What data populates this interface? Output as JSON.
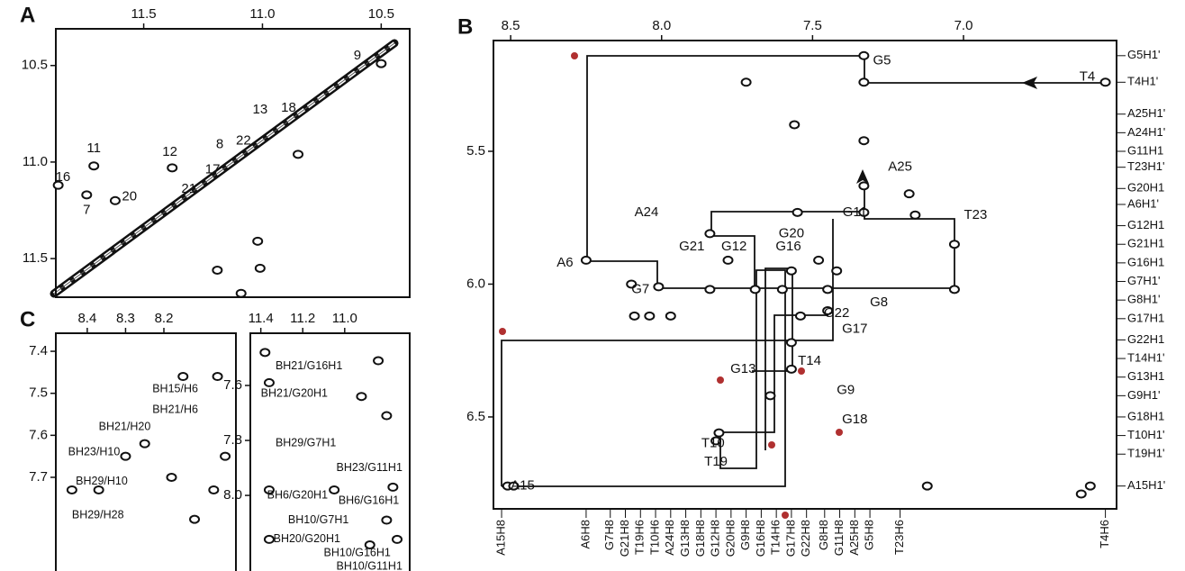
{
  "chart_data": [
    {
      "type": "contour",
      "panel_label": "A",
      "xlim": [
        11.87,
        10.38
      ],
      "ylim": [
        10.31,
        11.7
      ],
      "xticks": [
        11.5,
        {
          "value": 11,
          "label": "11.0"
        },
        10.5
      ],
      "yticks": [
        10.5,
        {
          "value": 11,
          "label": "11.0"
        },
        11.5
      ],
      "peaks": {
        "x": [
          10.5,
          11.86,
          11.71,
          11.74,
          11.62,
          11.38,
          11.19,
          11.01,
          11.09,
          11.02,
          10.85
        ],
        "y": [
          10.49,
          11.12,
          11.02,
          11.17,
          11.2,
          11.03,
          11.56,
          11.55,
          11.68,
          11.41,
          10.96
        ]
      },
      "annotations": [
        {
          "text": "9",
          "x": 10.6,
          "y": 10.45
        },
        {
          "text": "16",
          "x": 11.84,
          "y": 11.08
        },
        {
          "text": "11",
          "x": 11.71,
          "y": 10.93
        },
        {
          "text": "12",
          "x": 11.39,
          "y": 10.95
        },
        {
          "text": "7",
          "x": 11.74,
          "y": 11.25
        },
        {
          "text": "20",
          "x": 11.56,
          "y": 11.18
        },
        {
          "text": "13",
          "x": 11.01,
          "y": 10.73
        },
        {
          "text": "18",
          "x": 10.89,
          "y": 10.72
        },
        {
          "text": "8",
          "x": 11.18,
          "y": 10.91
        },
        {
          "text": "22",
          "x": 11.08,
          "y": 10.89
        },
        {
          "text": "17",
          "x": 11.21,
          "y": 11.04
        },
        {
          "text": "21",
          "x": 11.31,
          "y": 11.14
        }
      ]
    },
    {
      "type": "contour",
      "panel_label": "B",
      "xlim": [
        8.557,
        6.493
      ],
      "ylim": [
        5.083,
        6.846
      ],
      "xticks": [
        8.5,
        {
          "value": 8,
          "label": "8.0"
        },
        7.5,
        {
          "value": 7,
          "label": "7.0"
        }
      ],
      "yticks": [
        5.5,
        {
          "value": 6,
          "label": "6.0"
        },
        6.5
      ],
      "peaks": {
        "x": [
          7.33,
          6.53,
          7.33,
          7.72,
          7.33,
          7.33,
          7.33,
          7.55,
          7.56,
          8.25,
          8.01,
          7.84,
          7.78,
          7.84,
          7.69,
          7.57,
          7.6,
          7.45,
          7.54,
          7.45,
          7.57,
          7.57,
          7.64,
          7.81,
          7.82,
          8.51,
          8.49,
          7.12,
          7.03,
          7.03,
          7.18,
          7.16,
          6.61,
          6.58,
          8.1,
          8.09,
          8.04,
          7.97,
          7.48,
          7.42
        ],
        "y": [
          5.14,
          5.24,
          5.24,
          5.24,
          5.46,
          5.63,
          5.73,
          5.73,
          5.4,
          5.91,
          6.01,
          5.81,
          5.91,
          6.02,
          6.02,
          5.95,
          6.02,
          6.02,
          6.12,
          6.1,
          6.22,
          6.32,
          6.42,
          6.56,
          6.59,
          6.76,
          6.76,
          6.76,
          5.85,
          6.02,
          5.66,
          5.74,
          6.79,
          6.76,
          6.0,
          6.12,
          6.12,
          6.12,
          5.91,
          5.95
        ]
      },
      "annotations": [
        {
          "text": "G5",
          "x": 7.27,
          "y": 5.16
        },
        {
          "text": "T4",
          "x": 6.59,
          "y": 5.22
        },
        {
          "text": "A25",
          "x": 7.21,
          "y": 5.56
        },
        {
          "text": "A24",
          "x": 8.05,
          "y": 5.73
        },
        {
          "text": "G11",
          "x": 7.36,
          "y": 5.73
        },
        {
          "text": "T23",
          "x": 6.96,
          "y": 5.74
        },
        {
          "text": "G20",
          "x": 7.57,
          "y": 5.81
        },
        {
          "text": "G21",
          "x": 7.9,
          "y": 5.86
        },
        {
          "text": "G12",
          "x": 7.76,
          "y": 5.86
        },
        {
          "text": "G16",
          "x": 7.58,
          "y": 5.86
        },
        {
          "text": "A6",
          "x": 8.32,
          "y": 5.92
        },
        {
          "text": "G7",
          "x": 8.07,
          "y": 6.02
        },
        {
          "text": "G8",
          "x": 7.28,
          "y": 6.07
        },
        {
          "text": "G17",
          "x": 7.36,
          "y": 6.17
        },
        {
          "text": "G22",
          "x": 7.42,
          "y": 6.11
        },
        {
          "text": "T14",
          "x": 7.51,
          "y": 6.29
        },
        {
          "text": "G13",
          "x": 7.73,
          "y": 6.32
        },
        {
          "text": "G9",
          "x": 7.39,
          "y": 6.4
        },
        {
          "text": "G18",
          "x": 7.36,
          "y": 6.51
        },
        {
          "text": "T10",
          "x": 7.83,
          "y": 6.6
        },
        {
          "text": "T19",
          "x": 7.82,
          "y": 6.67
        },
        {
          "text": "A15",
          "x": 8.46,
          "y": 6.76
        }
      ],
      "right_labels": {
        "labels": [
          "G5H1'",
          "T4H1'",
          "A25H1'",
          "A24H1'",
          "G11H1",
          "T23H1'",
          "G20H1",
          "A6H1'",
          "G12H1",
          "G21H1",
          "G16H1",
          "G7H1'",
          "G8H1'",
          "G17H1",
          "G22H1",
          "T14H1'",
          "G13H1",
          "G9H1'",
          "G18H1",
          "T10H1'",
          "T19H1'",
          "A15H1'"
        ],
        "y": [
          5.14,
          5.24,
          5.36,
          5.43,
          5.5,
          5.56,
          5.64,
          5.7,
          5.78,
          5.85,
          5.92,
          5.99,
          6.06,
          6.13,
          6.21,
          6.28,
          6.35,
          6.42,
          6.5,
          6.57,
          6.64,
          6.76
        ]
      },
      "bottom_labels": {
        "labels": [
          "A15H8",
          "A6H8",
          "G7H8",
          "G21H8",
          "T19H6",
          "T10H6",
          "A24H8",
          "G13H8",
          "G18H8",
          "G12H8",
          "G20H8",
          "G9H8",
          "G16H8",
          "T14H6",
          "G17H8",
          "G22H8",
          "G8H8",
          "G11H8",
          "A25H8",
          "G5H8",
          "T23H6",
          "T4H6"
        ],
        "x": [
          8.53,
          8.25,
          8.17,
          8.12,
          8.07,
          8.02,
          7.97,
          7.92,
          7.87,
          7.82,
          7.77,
          7.72,
          7.67,
          7.62,
          7.57,
          7.52,
          7.46,
          7.41,
          7.36,
          7.31,
          7.21,
          6.53
        ]
      }
    },
    {
      "type": "contour",
      "panel_label": "C",
      "xlim": [
        8.482,
        8.012
      ],
      "ylim": [
        7.357,
        7.923
      ],
      "xticks": [
        8.4,
        8.3,
        8.2
      ],
      "yticks": [
        7.4,
        7.5,
        7.6,
        7.7
      ],
      "peaks": {
        "x": [
          8.15,
          8.06,
          8.25,
          8.12,
          8.18,
          8.37,
          8.44,
          8.3,
          8.07,
          8.04
        ],
        "y": [
          7.46,
          7.46,
          7.62,
          7.8,
          7.7,
          7.73,
          7.73,
          7.65,
          7.73,
          7.65
        ]
      },
      "annotations": [
        {
          "text": "BH15/H6",
          "x": 8.23,
          "y": 7.49
        },
        {
          "text": "BH21/H6",
          "x": 8.23,
          "y": 7.54
        },
        {
          "text": "BH21/H20",
          "x": 8.37,
          "y": 7.58
        },
        {
          "text": "BH23/H10",
          "x": 8.45,
          "y": 7.64
        },
        {
          "text": "BH29/H10",
          "x": 8.43,
          "y": 7.71
        },
        {
          "text": "BH29/H28",
          "x": 8.44,
          "y": 7.79
        }
      ]
    },
    {
      "type": "contour",
      "xlim": [
        11.45,
        10.69
      ],
      "ylim": [
        7.41,
        8.275
      ],
      "xticks": [
        11.4,
        11.2,
        {
          "value": 11,
          "label": "11.0"
        }
      ],
      "yticks": [
        7.6,
        7.8,
        {
          "value": 8,
          "label": "8.0"
        }
      ],
      "peaks": {
        "x": [
          11.38,
          11.36,
          10.84,
          10.8,
          11.36,
          11.05,
          11.36,
          10.8,
          10.88,
          10.75,
          10.77,
          10.92
        ],
        "y": [
          7.48,
          7.59,
          7.51,
          7.71,
          7.98,
          7.98,
          8.16,
          8.09,
          8.18,
          8.16,
          7.97,
          7.64
        ]
      },
      "annotations": [
        {
          "text": "BH21/G16H1",
          "x": 11.33,
          "y": 7.53
        },
        {
          "text": "BH21/G20H1",
          "x": 11.4,
          "y": 7.63
        },
        {
          "text": "BH29/G7H1",
          "x": 11.33,
          "y": 7.81
        },
        {
          "text": "BH23/G11H1",
          "x": 11.04,
          "y": 7.9
        },
        {
          "text": "BH6/G20H1",
          "x": 11.37,
          "y": 8.0
        },
        {
          "text": "BH6/G16H1",
          "x": 11.03,
          "y": 8.02
        },
        {
          "text": "BH10/G7H1",
          "x": 11.27,
          "y": 8.09
        },
        {
          "text": "BH20/G20H1",
          "x": 11.34,
          "y": 8.16
        },
        {
          "text": "BH10/G16H1",
          "x": 11.1,
          "y": 8.21
        },
        {
          "text": "BH10/G11H1",
          "x": 11.04,
          "y": 8.26
        }
      ]
    }
  ]
}
